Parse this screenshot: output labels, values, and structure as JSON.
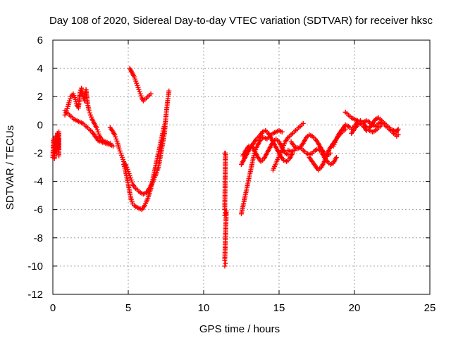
{
  "chart_data": {
    "type": "scatter",
    "title": "Day 108 of 2020, Sidereal Day-to-day VTEC variation (SDTVAR) for receiver hksc",
    "xlabel": "GPS time / hours",
    "ylabel": "SDTVAR / TECUs",
    "xlim": [
      0,
      25
    ],
    "ylim": [
      -12,
      6
    ],
    "xticks": [
      0,
      5,
      10,
      15,
      20,
      25
    ],
    "yticks": [
      -12,
      -10,
      -8,
      -6,
      -4,
      -2,
      0,
      2,
      4,
      6
    ],
    "grid": true,
    "marker": "+",
    "color": "#ff0000",
    "segments": [
      [
        [
          0.0,
          -2.3
        ],
        [
          0.05,
          -1.0
        ],
        [
          0.1,
          -2.4
        ],
        [
          0.15,
          -1.5
        ],
        [
          0.2,
          -0.8
        ],
        [
          0.25,
          -2.0
        ],
        [
          0.3,
          -0.6
        ],
        [
          0.35,
          -1.7
        ],
        [
          0.4,
          -0.5
        ],
        [
          0.4,
          -2.2
        ]
      ],
      [
        [
          0.8,
          0.7
        ],
        [
          0.9,
          1.0
        ],
        [
          1.0,
          1.3
        ],
        [
          1.1,
          1.7
        ],
        [
          1.2,
          2.0
        ],
        [
          1.35,
          2.2
        ],
        [
          1.5,
          1.8
        ],
        [
          1.6,
          1.4
        ],
        [
          1.7,
          1.2
        ],
        [
          1.8,
          2.3
        ],
        [
          1.9,
          2.6
        ],
        [
          2.0,
          2.0
        ],
        [
          2.1,
          1.7
        ],
        [
          2.2,
          2.5
        ],
        [
          2.3,
          1.5
        ],
        [
          2.4,
          1.0
        ],
        [
          2.5,
          0.7
        ],
        [
          2.6,
          0.4
        ],
        [
          2.7,
          0.2
        ],
        [
          2.8,
          0.0
        ],
        [
          2.9,
          -0.2
        ],
        [
          3.0,
          -0.5
        ],
        [
          3.1,
          -0.8
        ],
        [
          3.2,
          -1.0
        ],
        [
          3.3,
          -1.1
        ],
        [
          3.5,
          -1.2
        ],
        [
          3.7,
          -1.3
        ],
        [
          3.8,
          -1.3
        ]
      ],
      [
        [
          0.8,
          1.0
        ],
        [
          1.0,
          0.8
        ],
        [
          1.2,
          0.6
        ],
        [
          1.4,
          0.4
        ],
        [
          1.6,
          0.3
        ],
        [
          1.8,
          0.2
        ],
        [
          2.0,
          0.1
        ],
        [
          2.2,
          -0.1
        ],
        [
          2.4,
          -0.3
        ],
        [
          2.6,
          -0.5
        ],
        [
          2.8,
          -0.8
        ],
        [
          3.0,
          -1.1
        ],
        [
          3.2,
          -1.2
        ],
        [
          3.5,
          -1.3
        ],
        [
          3.8,
          -1.4
        ],
        [
          4.0,
          -1.5
        ]
      ],
      [
        [
          3.8,
          -0.2
        ],
        [
          4.0,
          -0.5
        ],
        [
          4.1,
          -0.7
        ],
        [
          4.2,
          -1.0
        ],
        [
          4.3,
          -1.3
        ],
        [
          4.4,
          -1.7
        ],
        [
          4.5,
          -2.0
        ],
        [
          4.6,
          -2.3
        ],
        [
          4.7,
          -2.6
        ],
        [
          4.8,
          -2.8
        ],
        [
          4.9,
          -3.0
        ],
        [
          5.0,
          -3.3
        ],
        [
          5.1,
          -3.6
        ],
        [
          5.2,
          -3.9
        ],
        [
          5.3,
          -4.2
        ],
        [
          5.4,
          -4.4
        ],
        [
          5.6,
          -4.6
        ],
        [
          5.8,
          -4.8
        ],
        [
          6.0,
          -4.9
        ],
        [
          6.2,
          -4.8
        ],
        [
          6.4,
          -4.5
        ],
        [
          6.6,
          -4.1
        ],
        [
          6.8,
          -3.6
        ],
        [
          7.0,
          -3.0
        ],
        [
          7.1,
          -2.4
        ],
        [
          7.2,
          -1.8
        ],
        [
          7.3,
          -1.2
        ],
        [
          7.4,
          -0.6
        ],
        [
          7.45,
          0.0
        ],
        [
          7.5,
          0.6
        ],
        [
          7.55,
          1.1
        ],
        [
          7.6,
          1.6
        ],
        [
          7.65,
          2.0
        ],
        [
          7.7,
          2.4
        ]
      ],
      [
        [
          4.7,
          -2.8
        ],
        [
          4.8,
          -3.2
        ],
        [
          4.9,
          -3.7
        ],
        [
          5.0,
          -4.2
        ],
        [
          5.1,
          -4.8
        ],
        [
          5.2,
          -5.3
        ],
        [
          5.3,
          -5.6
        ],
        [
          5.5,
          -5.8
        ],
        [
          5.7,
          -5.9
        ],
        [
          5.9,
          -6.0
        ],
        [
          6.1,
          -5.7
        ],
        [
          6.3,
          -5.2
        ],
        [
          6.5,
          -4.5
        ],
        [
          6.6,
          -4.0
        ],
        [
          6.7,
          -3.5
        ],
        [
          6.8,
          -3.0
        ],
        [
          6.9,
          -2.5
        ],
        [
          7.0,
          -2.0
        ],
        [
          7.1,
          -1.5
        ],
        [
          7.2,
          -1.0
        ],
        [
          7.3,
          -0.5
        ],
        [
          7.4,
          0.0
        ]
      ],
      [
        [
          5.1,
          4.0
        ],
        [
          5.2,
          3.8
        ],
        [
          5.3,
          3.6
        ],
        [
          5.4,
          3.4
        ],
        [
          5.5,
          3.1
        ],
        [
          5.6,
          2.8
        ],
        [
          5.7,
          2.5
        ],
        [
          5.8,
          2.2
        ],
        [
          5.9,
          1.9
        ],
        [
          6.0,
          1.7
        ],
        [
          6.1,
          1.8
        ],
        [
          6.2,
          1.9
        ],
        [
          6.3,
          2.0
        ],
        [
          6.4,
          2.1
        ],
        [
          6.5,
          2.2
        ]
      ],
      [
        [
          11.4,
          -2.0
        ],
        [
          11.45,
          -2.0
        ],
        [
          11.4,
          -6.0
        ],
        [
          11.45,
          -6.2
        ],
        [
          11.4,
          -6.4
        ],
        [
          11.5,
          -6.1
        ],
        [
          11.4,
          -9.6
        ],
        [
          11.45,
          -9.8
        ],
        [
          11.4,
          -10.0
        ]
      ],
      [
        [
          12.5,
          -6.3
        ],
        [
          12.6,
          -5.8
        ],
        [
          12.7,
          -5.3
        ],
        [
          12.8,
          -4.8
        ],
        [
          12.9,
          -4.3
        ],
        [
          13.0,
          -3.8
        ],
        [
          13.1,
          -3.3
        ],
        [
          13.2,
          -2.8
        ],
        [
          13.3,
          -2.3
        ],
        [
          13.4,
          -1.9
        ],
        [
          13.5,
          -1.6
        ],
        [
          13.6,
          -1.4
        ],
        [
          13.7,
          -1.2
        ],
        [
          13.8,
          -1.0
        ],
        [
          13.9,
          -0.9
        ],
        [
          14.0,
          -0.9
        ],
        [
          14.2,
          -1.0
        ],
        [
          14.4,
          -0.8
        ],
        [
          14.6,
          -0.6
        ],
        [
          14.8,
          -0.5
        ],
        [
          15.0,
          -0.4
        ],
        [
          15.2,
          -0.5
        ]
      ],
      [
        [
          12.5,
          -2.8
        ],
        [
          12.7,
          -2.4
        ],
        [
          12.9,
          -2.0
        ],
        [
          13.1,
          -1.6
        ],
        [
          13.3,
          -1.3
        ],
        [
          13.5,
          -1.0
        ],
        [
          13.7,
          -0.8
        ],
        [
          13.9,
          -0.5
        ],
        [
          14.1,
          -0.4
        ],
        [
          14.3,
          -0.6
        ],
        [
          14.5,
          -1.0
        ],
        [
          14.7,
          -1.4
        ],
        [
          14.9,
          -1.8
        ],
        [
          15.1,
          -2.2
        ],
        [
          15.3,
          -2.5
        ],
        [
          15.5,
          -2.6
        ],
        [
          15.7,
          -2.4
        ],
        [
          15.9,
          -2.0
        ]
      ],
      [
        [
          12.6,
          -2.2
        ],
        [
          12.8,
          -1.8
        ],
        [
          13.0,
          -1.5
        ],
        [
          13.2,
          -1.5
        ],
        [
          13.4,
          -1.9
        ],
        [
          13.6,
          -2.3
        ],
        [
          13.8,
          -2.6
        ],
        [
          14.0,
          -2.4
        ],
        [
          14.2,
          -2.0
        ],
        [
          14.4,
          -1.6
        ],
        [
          14.6,
          -1.2
        ],
        [
          14.8,
          -1.0
        ],
        [
          15.0,
          -1.2
        ],
        [
          15.2,
          -1.6
        ],
        [
          15.4,
          -2.0
        ],
        [
          15.6,
          -2.1
        ]
      ],
      [
        [
          14.6,
          -3.2
        ],
        [
          14.8,
          -2.7
        ],
        [
          15.0,
          -2.2
        ],
        [
          15.2,
          -1.7
        ],
        [
          15.4,
          -1.2
        ],
        [
          15.6,
          -0.9
        ],
        [
          15.8,
          -0.7
        ],
        [
          16.0,
          -0.5
        ],
        [
          16.2,
          -0.3
        ],
        [
          16.4,
          -0.1
        ],
        [
          16.6,
          0.1
        ]
      ],
      [
        [
          15.8,
          -1.2
        ],
        [
          16.0,
          -1.5
        ],
        [
          16.2,
          -1.7
        ],
        [
          16.4,
          -1.6
        ],
        [
          16.6,
          -1.3
        ],
        [
          16.8,
          -0.9
        ],
        [
          17.0,
          -0.7
        ],
        [
          17.2,
          -0.8
        ],
        [
          17.4,
          -1.0
        ],
        [
          17.6,
          -1.3
        ],
        [
          17.8,
          -1.7
        ],
        [
          18.0,
          -2.0
        ],
        [
          18.2,
          -2.2
        ],
        [
          18.4,
          -2.0
        ]
      ],
      [
        [
          15.6,
          -1.8
        ],
        [
          15.8,
          -1.9
        ],
        [
          16.0,
          -1.8
        ],
        [
          16.2,
          -1.6
        ],
        [
          16.4,
          -1.6
        ],
        [
          16.6,
          -1.8
        ],
        [
          16.8,
          -2.0
        ],
        [
          17.0,
          -2.1
        ],
        [
          17.2,
          -2.0
        ],
        [
          17.4,
          -1.8
        ],
        [
          17.6,
          -1.7
        ],
        [
          17.8,
          -1.9
        ],
        [
          18.0,
          -2.3
        ],
        [
          18.2,
          -2.6
        ],
        [
          18.4,
          -2.8
        ],
        [
          18.6,
          -2.7
        ],
        [
          18.8,
          -2.3
        ]
      ],
      [
        [
          17.0,
          -2.3
        ],
        [
          17.2,
          -2.6
        ],
        [
          17.4,
          -2.9
        ],
        [
          17.6,
          -3.2
        ],
        [
          17.8,
          -3.0
        ],
        [
          18.0,
          -2.6
        ],
        [
          18.2,
          -2.0
        ],
        [
          18.4,
          -1.6
        ],
        [
          18.6,
          -1.3
        ],
        [
          18.8,
          -1.0
        ],
        [
          19.0,
          -0.7
        ],
        [
          19.2,
          -0.5
        ],
        [
          19.4,
          -0.3
        ]
      ],
      [
        [
          18.6,
          -1.5
        ],
        [
          18.8,
          -1.0
        ],
        [
          19.0,
          -0.6
        ],
        [
          19.2,
          -0.3
        ],
        [
          19.4,
          0.0
        ],
        [
          19.6,
          -0.1
        ],
        [
          19.8,
          -0.3
        ],
        [
          20.0,
          -0.1
        ],
        [
          20.2,
          0.2
        ],
        [
          20.4,
          0.3
        ],
        [
          20.6,
          0.1
        ],
        [
          20.8,
          -0.2
        ],
        [
          21.0,
          -0.4
        ],
        [
          21.2,
          -0.5
        ],
        [
          21.4,
          -0.4
        ],
        [
          21.6,
          -0.2
        ],
        [
          21.8,
          0.0
        ]
      ],
      [
        [
          19.4,
          0.9
        ],
        [
          19.6,
          0.7
        ],
        [
          19.8,
          0.5
        ],
        [
          20.0,
          0.4
        ],
        [
          20.2,
          0.3
        ],
        [
          20.4,
          0.2
        ],
        [
          20.6,
          0.2
        ],
        [
          20.8,
          0.3
        ],
        [
          21.0,
          0.2
        ],
        [
          21.2,
          0.0
        ],
        [
          21.4,
          -0.1
        ],
        [
          21.6,
          0.1
        ],
        [
          21.8,
          0.2
        ],
        [
          22.0,
          0.0
        ],
        [
          22.2,
          -0.2
        ],
        [
          22.4,
          -0.4
        ],
        [
          22.6,
          -0.6
        ],
        [
          22.8,
          -0.8
        ],
        [
          22.9,
          -0.7
        ]
      ],
      [
        [
          19.8,
          -0.6
        ],
        [
          20.0,
          -0.3
        ],
        [
          20.2,
          0.0
        ],
        [
          20.4,
          0.1
        ],
        [
          20.6,
          -0.1
        ],
        [
          20.8,
          -0.4
        ],
        [
          21.0,
          -0.2
        ],
        [
          21.2,
          0.1
        ],
        [
          21.4,
          0.4
        ],
        [
          21.6,
          0.5
        ],
        [
          21.8,
          0.3
        ],
        [
          22.0,
          0.1
        ],
        [
          22.2,
          -0.1
        ],
        [
          22.4,
          -0.3
        ],
        [
          22.6,
          -0.4
        ],
        [
          22.8,
          -0.5
        ],
        [
          22.9,
          -0.3
        ]
      ]
    ]
  }
}
